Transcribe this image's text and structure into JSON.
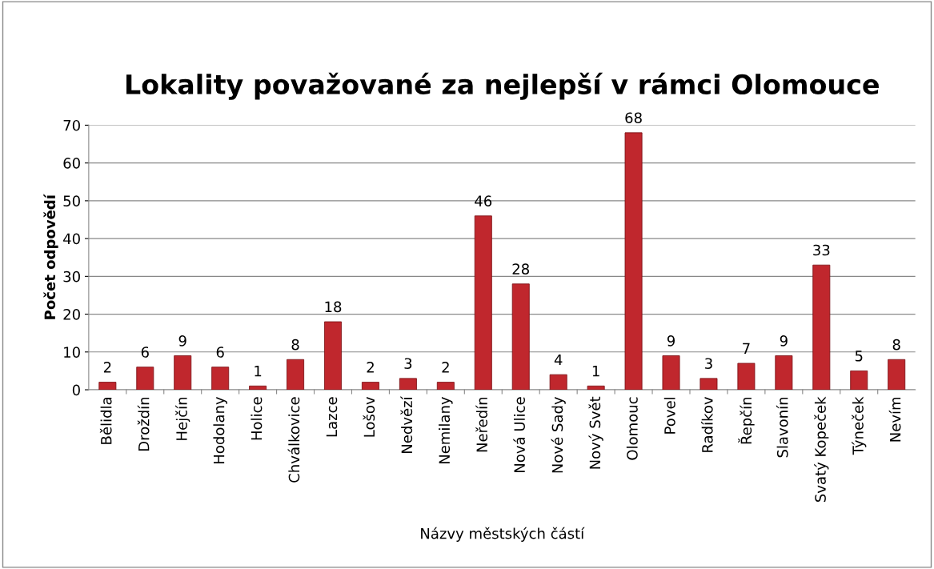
{
  "chart_data": {
    "type": "bar",
    "title": "Lokality považované za nejlepší v rámci Olomouce",
    "xlabel": "Názvy městských částí",
    "ylabel": "Počet odpovědí",
    "categories": [
      "Bělidla",
      "Droždín",
      "Hejčín",
      "Hodolany",
      "Holice",
      "Chválkovice",
      "Lazce",
      "Lošov",
      "Nedvězí",
      "Nemilany",
      "Neředín",
      "Nová Ulice",
      "Nové Sady",
      "Nový Svět",
      "Olomouc",
      "Povel",
      "Radíkov",
      "Řepčín",
      "Slavonín",
      "Svatý Kopeček",
      "Týneček",
      "Nevím"
    ],
    "values": [
      2,
      6,
      9,
      6,
      1,
      8,
      18,
      2,
      3,
      2,
      46,
      28,
      4,
      1,
      68,
      9,
      3,
      7,
      9,
      33,
      5,
      8
    ],
    "color": "#c0272d",
    "ylim": [
      0,
      70
    ],
    "yticks": [
      0,
      10,
      20,
      30,
      40,
      50,
      60,
      70
    ],
    "grid": "y",
    "data_labels": true,
    "legend": false
  }
}
